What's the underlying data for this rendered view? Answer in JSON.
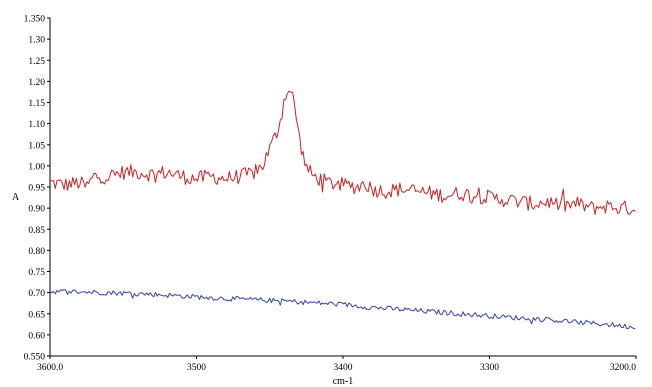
{
  "chart_data": {
    "type": "line",
    "title": "",
    "xlabel": "cm-1",
    "ylabel": "A",
    "xlim": [
      3600.0,
      3200.0
    ],
    "ylim": [
      0.55,
      1.35
    ],
    "x_reversed": true,
    "grid": false,
    "x_ticks": [
      3600,
      3500,
      3400,
      3300,
      3200
    ],
    "x_tick_labels": [
      "3600.0",
      "3500",
      "3400",
      "3300",
      "3200.0"
    ],
    "y_ticks": [
      0.55,
      0.6,
      0.65,
      0.7,
      0.75,
      0.8,
      0.85,
      0.9,
      0.95,
      1.0,
      1.05,
      1.1,
      1.15,
      1.2,
      1.25,
      1.3,
      1.35
    ],
    "y_tick_labels": [
      "0.550",
      "0.60",
      "0.65",
      "0.70",
      "0.75",
      "0.80",
      "0.85",
      "0.90",
      "0.95",
      "1.00",
      "1.05",
      "1.10",
      "1.15",
      "1.20",
      "1.25",
      "1.30",
      "1.350"
    ],
    "series": [
      {
        "color": "#cc2222",
        "x": [
          3600,
          3590,
          3580,
          3575,
          3570,
          3560,
          3550,
          3540,
          3530,
          3520,
          3510,
          3500,
          3490,
          3480,
          3470,
          3460,
          3455,
          3450,
          3445,
          3442,
          3440,
          3438,
          3436,
          3434,
          3432,
          3430,
          3427,
          3424,
          3420,
          3410,
          3400,
          3390,
          3385,
          3380,
          3370,
          3360,
          3350,
          3340,
          3330,
          3320,
          3310,
          3300,
          3290,
          3280,
          3270,
          3260,
          3250,
          3240,
          3230,
          3220,
          3210,
          3200
        ],
        "y": [
          0.96,
          0.955,
          0.96,
          0.95,
          0.975,
          0.975,
          0.985,
          0.985,
          0.98,
          0.985,
          0.975,
          0.97,
          0.975,
          0.97,
          0.975,
          0.985,
          1.0,
          1.04,
          1.08,
          1.12,
          1.16,
          1.18,
          1.175,
          1.16,
          1.12,
          1.07,
          1.02,
          0.99,
          0.975,
          0.96,
          0.955,
          0.95,
          0.96,
          0.945,
          0.94,
          0.945,
          0.94,
          0.935,
          0.93,
          0.935,
          0.93,
          0.925,
          0.92,
          0.915,
          0.91,
          0.915,
          0.905,
          0.91,
          0.9,
          0.905,
          0.9,
          0.9
        ],
        "noise": 0.018
      },
      {
        "color": "#3344aa",
        "x": [
          3600,
          3580,
          3560,
          3540,
          3520,
          3500,
          3480,
          3460,
          3440,
          3420,
          3400,
          3380,
          3360,
          3340,
          3320,
          3300,
          3280,
          3260,
          3240,
          3220,
          3200
        ],
        "y": [
          0.703,
          0.702,
          0.7,
          0.698,
          0.694,
          0.69,
          0.686,
          0.683,
          0.68,
          0.676,
          0.672,
          0.665,
          0.66,
          0.655,
          0.65,
          0.645,
          0.64,
          0.636,
          0.63,
          0.625,
          0.618
        ],
        "noise": 0.006
      }
    ]
  }
}
